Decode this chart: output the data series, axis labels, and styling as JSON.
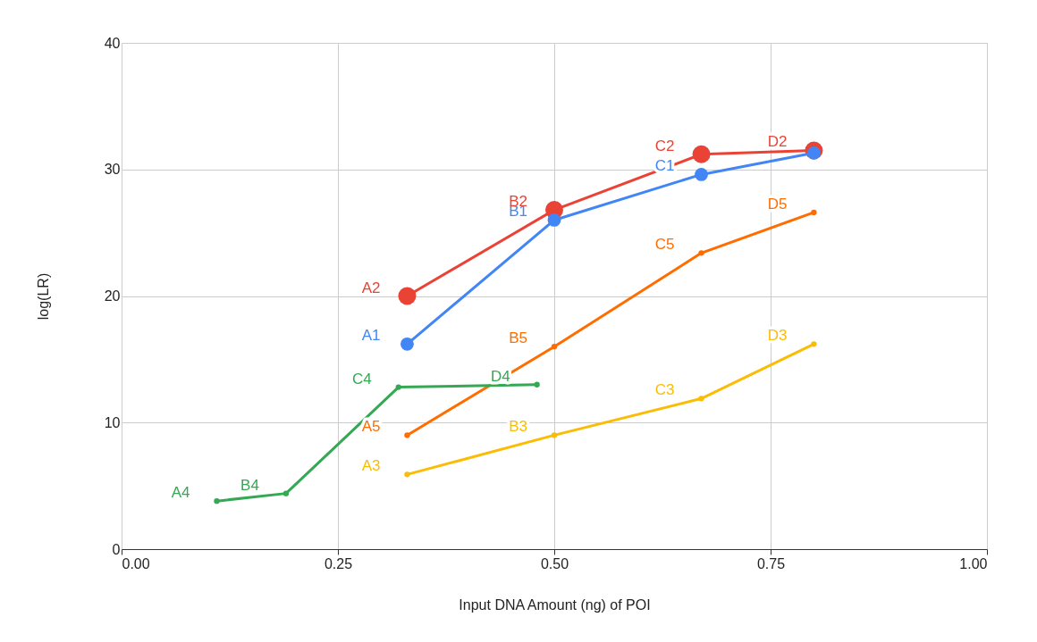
{
  "chart_data": {
    "type": "line",
    "xlabel": "Input DNA Amount (ng) of POI",
    "ylabel": "log(LR)",
    "xlim": [
      0,
      1
    ],
    "xticks": [
      {
        "value": 0,
        "label": "0.00"
      },
      {
        "value": 0.25,
        "label": "0.25"
      },
      {
        "value": 0.5,
        "label": "0.50"
      },
      {
        "value": 0.75,
        "label": "0.75"
      },
      {
        "value": 1,
        "label": "1.00"
      }
    ],
    "ylim": [
      0,
      40
    ],
    "yticks": [
      0,
      10,
      20,
      30,
      40
    ],
    "grid": true,
    "marker": "circle",
    "line_style": "solid",
    "series": [
      {
        "color": "#4285f4",
        "x": [
          0.33,
          0.5,
          0.67,
          0.8
        ],
        "values": [
          16.2,
          26.0,
          29.6,
          31.3
        ]
      },
      {
        "color": "#ea4335",
        "x": [
          0.33,
          0.5,
          0.67,
          0.8
        ],
        "values": [
          20.0,
          26.8,
          31.2,
          31.5
        ]
      },
      {
        "color": "#fbbc04",
        "x": [
          0.33,
          0.5,
          0.67,
          0.8
        ],
        "values": [
          5.9,
          9.0,
          11.9,
          16.2
        ]
      },
      {
        "color": "#34a853",
        "x": [
          0.11,
          0.19,
          0.32,
          0.48
        ],
        "values": [
          3.8,
          4.4,
          12.8,
          13.0
        ]
      },
      {
        "color": "#ff6d01",
        "x": [
          0.33,
          0.5,
          0.67,
          0.8
        ],
        "values": [
          9.0,
          16.0,
          23.4,
          26.6
        ]
      }
    ],
    "annotations": [
      {
        "text": "A1",
        "x": 0.33,
        "y": 16.2
      },
      {
        "text": "B1",
        "x": 0.5,
        "y": 26.0
      },
      {
        "text": "C1",
        "x": 0.67,
        "y": 29.6
      },
      {
        "text": "A2",
        "x": 0.33,
        "y": 20.0
      },
      {
        "text": "B2",
        "x": 0.5,
        "y": 26.8
      },
      {
        "text": "C2",
        "x": 0.67,
        "y": 31.2
      },
      {
        "text": "D2",
        "x": 0.8,
        "y": 31.5
      },
      {
        "text": "A3",
        "x": 0.33,
        "y": 5.9
      },
      {
        "text": "B3",
        "x": 0.5,
        "y": 9.0
      },
      {
        "text": "C3",
        "x": 0.67,
        "y": 11.9
      },
      {
        "text": "D3",
        "x": 0.8,
        "y": 16.2
      },
      {
        "text": "A4",
        "x": 0.11,
        "y": 3.8
      },
      {
        "text": "B4",
        "x": 0.19,
        "y": 4.4
      },
      {
        "text": "C4",
        "x": 0.32,
        "y": 12.8
      },
      {
        "text": "D4",
        "x": 0.48,
        "y": 13.0
      },
      {
        "text": "A5",
        "x": 0.33,
        "y": 9.0
      },
      {
        "text": "B5",
        "x": 0.5,
        "y": 16.0
      },
      {
        "text": "C5",
        "x": 0.67,
        "y": 23.4
      },
      {
        "text": "D5",
        "x": 0.8,
        "y": 26.6
      }
    ]
  }
}
